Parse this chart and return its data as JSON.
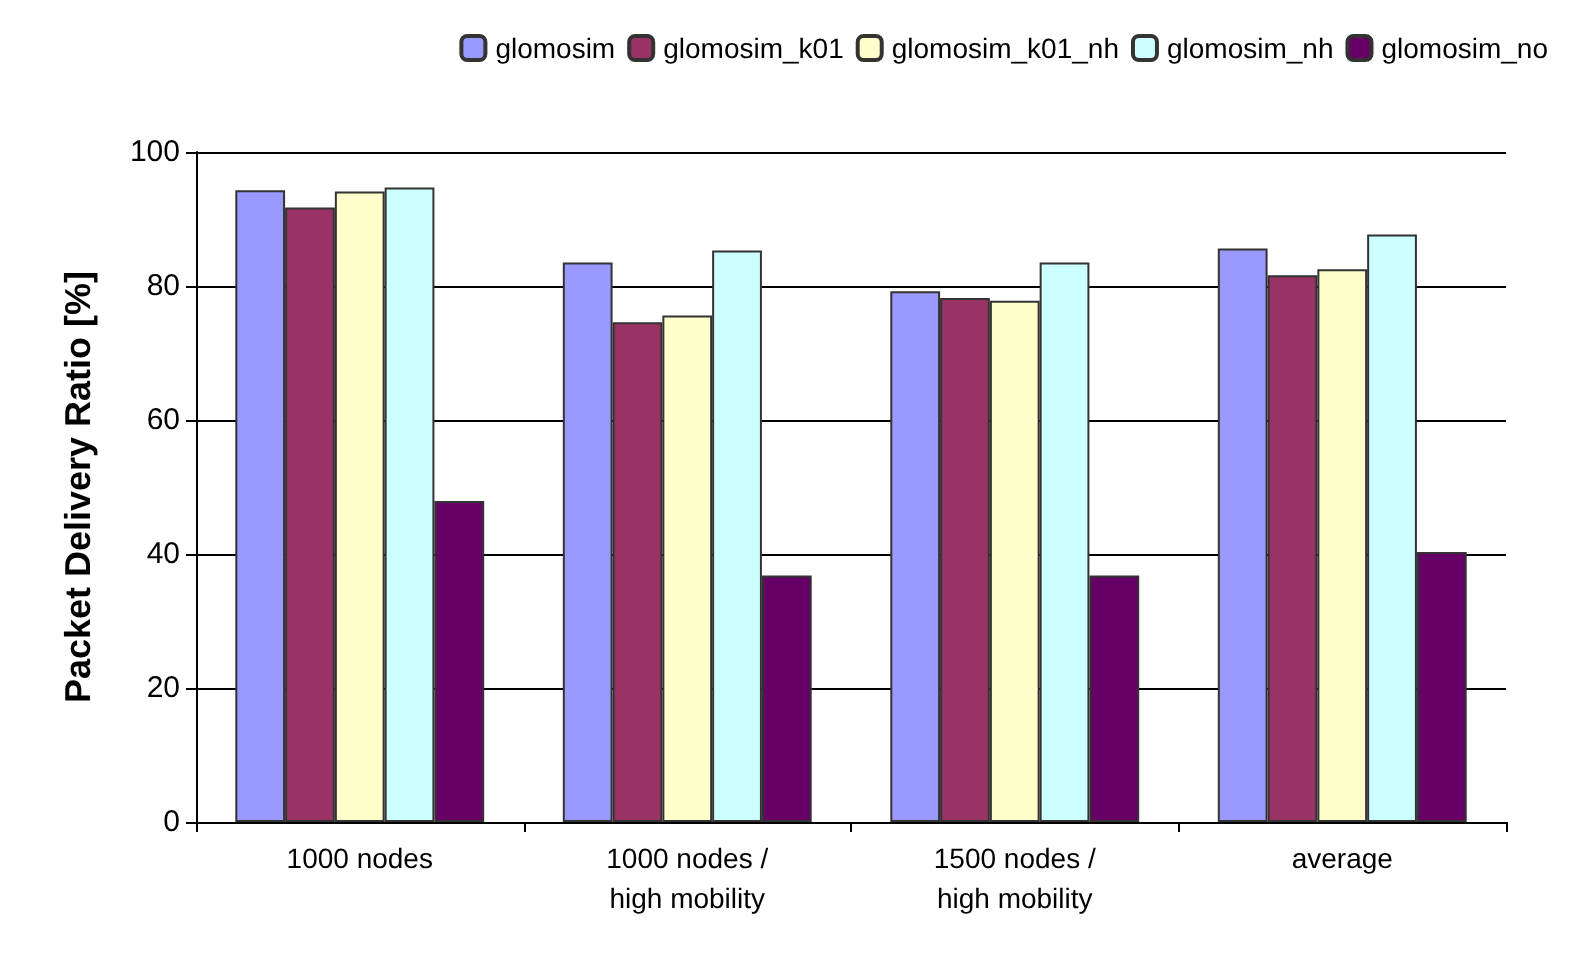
{
  "chart_data": {
    "type": "bar",
    "ylabel": "Packet Delivery Ratio [%]",
    "categories": [
      "1000 nodes",
      "1000 nodes /\nhigh mobility",
      "1500 nodes /\nhigh mobility",
      "average"
    ],
    "series": [
      {
        "name": "glomosim",
        "color": "#9999ff",
        "values": [
          94.3,
          83.5,
          79.2,
          85.6
        ]
      },
      {
        "name": "glomosim_k01",
        "color": "#993366",
        "values": [
          91.7,
          74.6,
          78.2,
          81.6
        ]
      },
      {
        "name": "glomosim_k01_nh",
        "color": "#ffffcc",
        "values": [
          94.1,
          75.6,
          77.8,
          82.5
        ]
      },
      {
        "name": "glomosim_nh",
        "color": "#ccffff",
        "values": [
          94.7,
          85.3,
          83.5,
          87.7
        ]
      },
      {
        "name": "glomosim_no",
        "color": "#660066",
        "values": [
          47.9,
          36.8,
          36.8,
          40.3
        ]
      }
    ],
    "ylim": [
      0,
      100
    ],
    "yticks": [
      0,
      20,
      40,
      60,
      80,
      100
    ],
    "grid": "y",
    "legend": "top"
  }
}
